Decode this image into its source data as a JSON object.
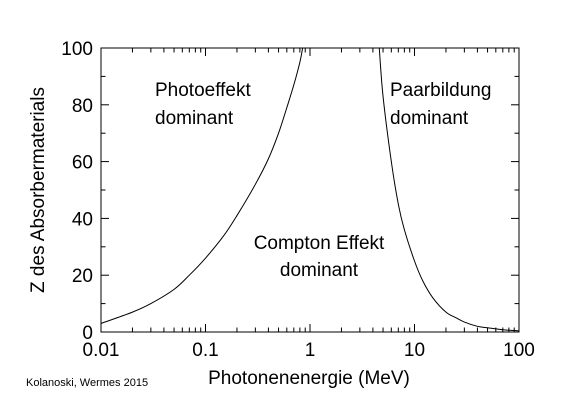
{
  "chart_data": {
    "type": "line",
    "xlabel": "Photonenenergie (MeV)",
    "ylabel": "Z des Absorbermaterials",
    "x_scale": "log",
    "xlim": [
      0.01,
      100
    ],
    "ylim": [
      0,
      100
    ],
    "x_ticks": [
      {
        "value": 0.01,
        "label": "0.01"
      },
      {
        "value": 0.1,
        "label": "0.1"
      },
      {
        "value": 1,
        "label": "1"
      },
      {
        "value": 10,
        "label": "10"
      },
      {
        "value": 100,
        "label": "100"
      }
    ],
    "y_ticks": [
      {
        "value": 0,
        "label": "0"
      },
      {
        "value": 20,
        "label": "20"
      },
      {
        "value": 40,
        "label": "40"
      },
      {
        "value": 60,
        "label": "60"
      },
      {
        "value": 80,
        "label": "80"
      },
      {
        "value": 100,
        "label": "100"
      }
    ],
    "series": [
      {
        "x": [
          0.01,
          0.02,
          0.03,
          0.05,
          0.07,
          0.1,
          0.15,
          0.2,
          0.3,
          0.4,
          0.5,
          0.6,
          0.7,
          0.8,
          0.85
        ],
        "y": [
          3,
          7,
          10,
          15,
          20,
          26,
          34,
          41,
          52,
          61,
          70,
          79,
          87,
          95,
          100
        ]
      },
      {
        "x": [
          4.6,
          5,
          6,
          7,
          8,
          10,
          12,
          15,
          20,
          25,
          30,
          40,
          50,
          70,
          100
        ],
        "y": [
          100,
          83,
          60,
          45,
          36,
          25,
          18,
          12,
          7,
          5,
          3.5,
          2,
          1.5,
          0.8,
          0.4
        ]
      }
    ],
    "annotations": [
      {
        "lines": [
          "Photoeffekt",
          "dominant"
        ]
      },
      {
        "lines": [
          "Paarbildung",
          "dominant"
        ]
      },
      {
        "lines": [
          "Compton Effekt",
          "dominant"
        ]
      }
    ],
    "grid": false
  },
  "credit": "Kolanoski, Wermes 2015"
}
